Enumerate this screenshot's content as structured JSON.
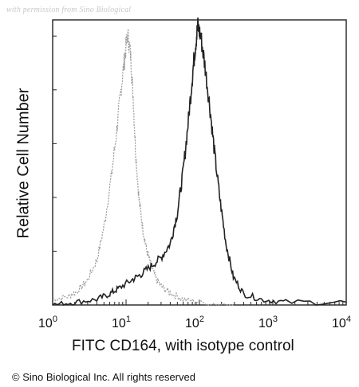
{
  "watermark": "with permission from Sino Biological",
  "copyright": "© Sino Biological Inc. All rights reserved",
  "chart_data": {
    "type": "line",
    "title": "",
    "xlabel": "FITC CD164, with isotype control",
    "ylabel": "Relative Cell Number",
    "x_scale": "log",
    "xlim": [
      1,
      10000
    ],
    "ylim": [
      0,
      100
    ],
    "x_ticks": [
      {
        "value": 1,
        "base": "10",
        "exp": "0"
      },
      {
        "value": 10,
        "base": "10",
        "exp": "1"
      },
      {
        "value": 100,
        "base": "10",
        "exp": "2"
      },
      {
        "value": 1000,
        "base": "10",
        "exp": "3"
      },
      {
        "value": 10000,
        "base": "10",
        "exp": "4"
      }
    ],
    "grid": false,
    "legend": "none",
    "series": [
      {
        "role": "isotype control",
        "color": "#9a9a9a",
        "dashed": true,
        "x": [
          1.0,
          1.6,
          2.2,
          3.0,
          4.0,
          5.0,
          6.3,
          7.5,
          8.5,
          9.5,
          10.5,
          11.5,
          12.5,
          13.5,
          15,
          17,
          19,
          22,
          26,
          32,
          42,
          60,
          100,
          300
        ],
        "y": [
          2,
          3,
          5,
          9,
          16,
          28,
          46,
          63,
          77,
          88,
          97,
          90,
          75,
          55,
          38,
          27,
          20,
          14,
          9,
          6,
          4,
          2,
          1,
          0
        ]
      },
      {
        "role": "CD164",
        "color": "#222222",
        "dashed": false,
        "x": [
          1.0,
          2.0,
          4.0,
          6.0,
          8.0,
          12,
          16,
          22,
          30,
          40,
          50,
          60,
          70,
          80,
          88,
          95,
          105,
          120,
          140,
          160,
          190,
          230,
          290,
          400,
          700,
          1500,
          10000
        ],
        "y": [
          0,
          1,
          2,
          4,
          6,
          9,
          11,
          14,
          17,
          22,
          33,
          48,
          65,
          82,
          93,
          100,
          96,
          85,
          70,
          55,
          38,
          22,
          10,
          4,
          2,
          1,
          1
        ]
      }
    ]
  }
}
